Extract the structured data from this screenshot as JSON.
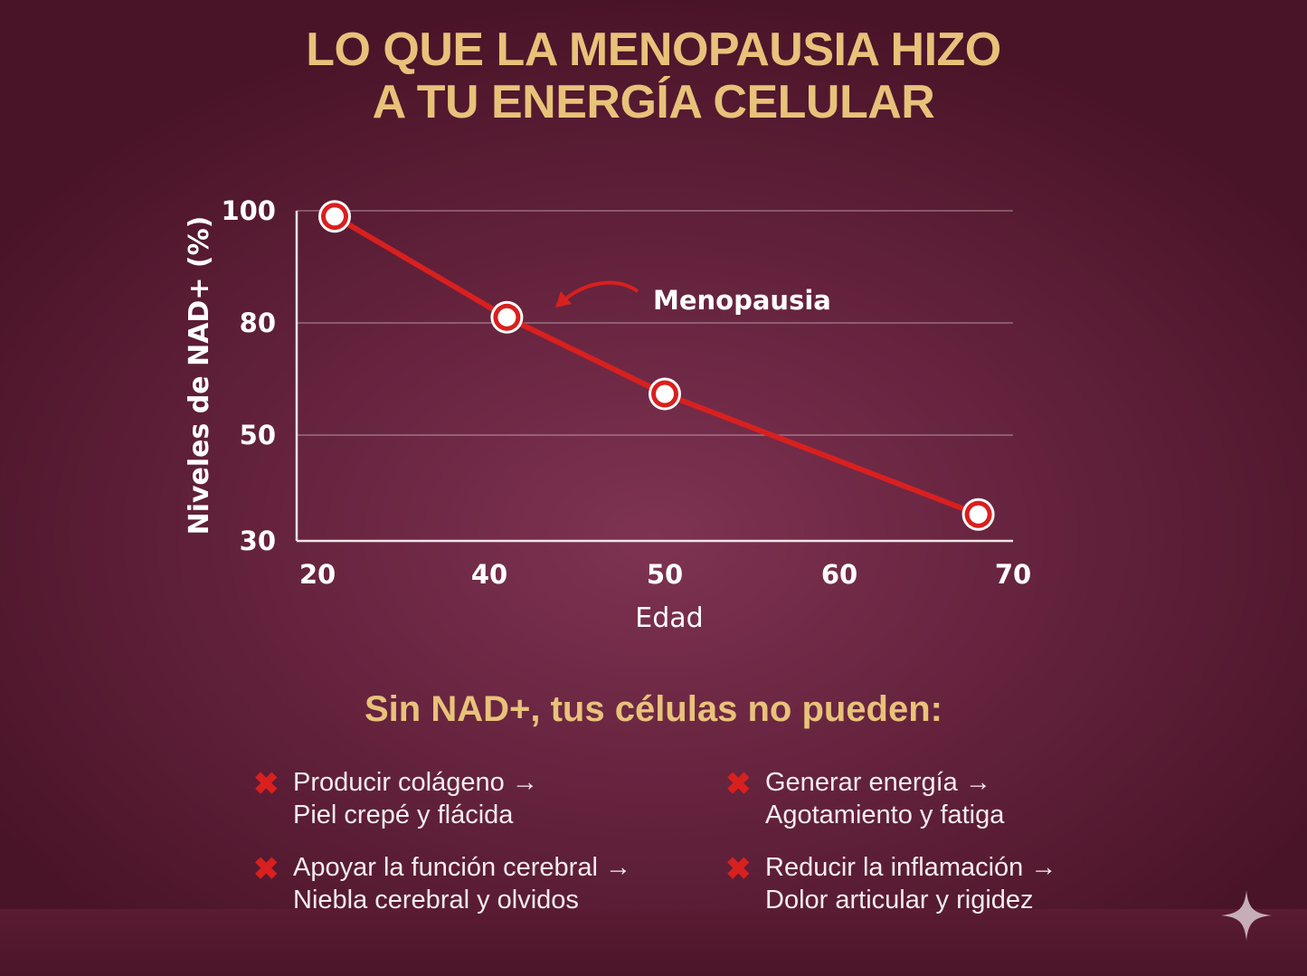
{
  "title_lines": [
    "LO QUE LA MENOPAUSIA HIZO",
    "A TU ENERGÍA CELULAR"
  ],
  "chart_data": {
    "type": "line",
    "xlabel": "Edad",
    "ylabel": "Niveles de NAD+ (%)",
    "x_ticks": [
      20,
      40,
      50,
      60,
      70
    ],
    "y_ticks": [
      30,
      50,
      80,
      100
    ],
    "x_tick_labels": [
      "20",
      "40",
      "50",
      "60",
      "70"
    ],
    "y_tick_labels": [
      "30",
      "50",
      "80",
      "100"
    ],
    "xlim": [
      20,
      70
    ],
    "ylim": [
      30,
      100
    ],
    "grid": "horizontal",
    "x": [
      22,
      41,
      50,
      68
    ],
    "values": [
      99,
      81,
      61,
      35
    ],
    "annotation": {
      "text": "Menopausia",
      "points_to_x": 41
    },
    "line_color": "#d8201f"
  },
  "subtitle": "Sin NAD+, tus células no pueden:",
  "items": [
    {
      "line1": "Producir colágeno →",
      "line2": "Piel crepé y flácida"
    },
    {
      "line1": "Generar energía →",
      "line2": "Agotamiento y fatiga"
    },
    {
      "line1": "Apoyar la función cerebral →",
      "line2": "Niebla cerebral y olvidos"
    },
    {
      "line1": "Reducir la inflamación →",
      "line2": "Dolor articular y rigidez"
    }
  ],
  "x_mark": "✖",
  "icons": {
    "bullet": "x-mark-icon",
    "corner": "sparkle-icon"
  },
  "colors": {
    "title": "#e8c27a",
    "accent": "#d8201f",
    "background": "#62213b"
  }
}
